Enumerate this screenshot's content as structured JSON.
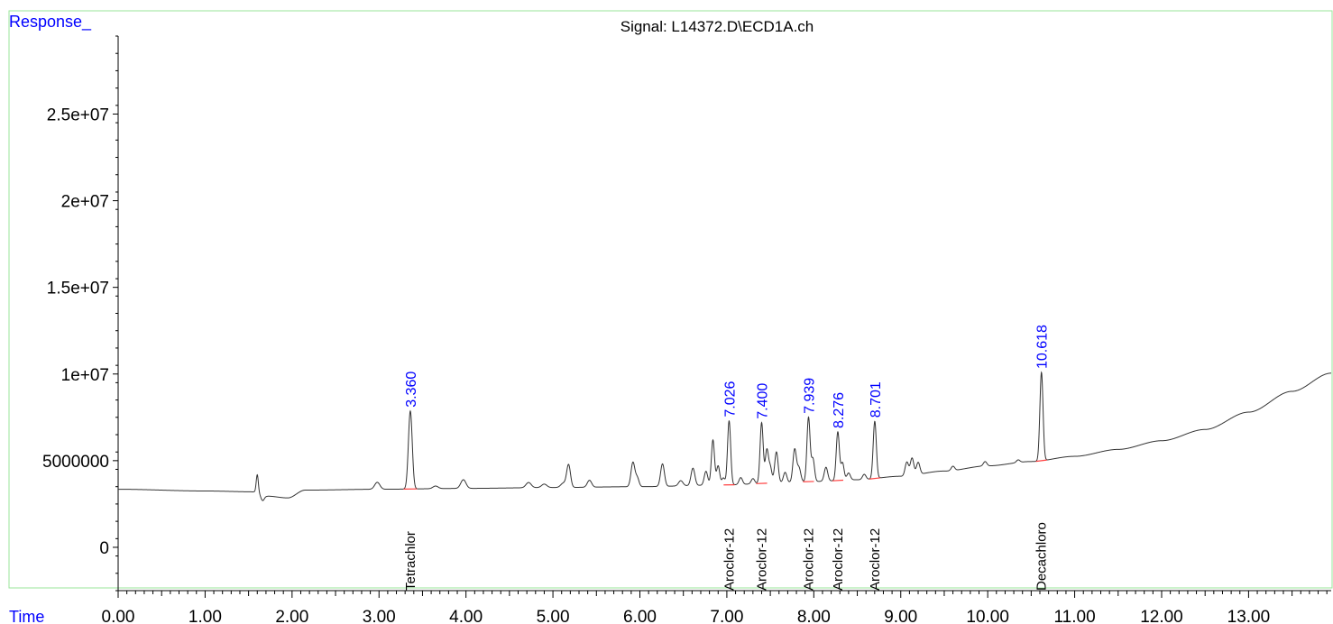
{
  "chart_data": {
    "type": "line",
    "title": "Signal: L14372.D\\ECD1A.ch",
    "ylabel": "Response_",
    "xlabel": "Time",
    "xlim": [
      0,
      13.95
    ],
    "ylim": [
      -2500000,
      29500000
    ],
    "x_ticks": [
      0,
      1,
      2,
      3,
      4,
      5,
      6,
      7,
      8,
      9,
      10,
      11,
      12,
      13
    ],
    "x_tick_labels": [
      "0.00",
      "1.00",
      "2.00",
      "3.00",
      "4.00",
      "5.00",
      "6.00",
      "7.00",
      "8.00",
      "9.00",
      "10.00",
      "11.00",
      "12.00",
      "13.00"
    ],
    "y_ticks": [
      0,
      5000000,
      10000000,
      15000000,
      20000000,
      25000000
    ],
    "y_tick_labels": [
      "0",
      "5000000",
      "1e+07",
      "1.5e+07",
      "2e+07",
      "2.5e+07"
    ],
    "baseline_points": [
      [
        0.0,
        3350000
      ],
      [
        1.0,
        3250000
      ],
      [
        1.58,
        3200000
      ],
      [
        1.72,
        2950000
      ],
      [
        1.95,
        2850000
      ],
      [
        2.15,
        3300000
      ],
      [
        3.0,
        3350000
      ],
      [
        4.0,
        3400000
      ],
      [
        5.0,
        3450000
      ],
      [
        6.0,
        3500000
      ],
      [
        7.0,
        3600000
      ],
      [
        7.5,
        3700000
      ],
      [
        8.0,
        3800000
      ],
      [
        8.5,
        3900000
      ],
      [
        9.0,
        4100000
      ],
      [
        9.5,
        4400000
      ],
      [
        10.0,
        4700000
      ],
      [
        10.5,
        4950000
      ],
      [
        11.0,
        5250000
      ],
      [
        11.5,
        5650000
      ],
      [
        12.0,
        6150000
      ],
      [
        12.5,
        6800000
      ],
      [
        13.0,
        7800000
      ],
      [
        13.5,
        9000000
      ],
      [
        13.95,
        10050000
      ]
    ],
    "minor_peaks": [
      {
        "rt": 1.6,
        "height": 1000000,
        "width": 0.012
      },
      {
        "rt": 2.98,
        "height": 400000,
        "width": 0.03
      },
      {
        "rt": 3.65,
        "height": 150000,
        "width": 0.03
      },
      {
        "rt": 3.97,
        "height": 500000,
        "width": 0.03
      },
      {
        "rt": 4.72,
        "height": 300000,
        "width": 0.03
      },
      {
        "rt": 4.9,
        "height": 200000,
        "width": 0.03
      },
      {
        "rt": 5.12,
        "height": 250000,
        "width": 0.03
      },
      {
        "rt": 5.18,
        "height": 1300000,
        "width": 0.022
      },
      {
        "rt": 5.42,
        "height": 400000,
        "width": 0.025
      },
      {
        "rt": 5.92,
        "height": 1400000,
        "width": 0.022
      },
      {
        "rt": 5.97,
        "height": 500000,
        "width": 0.02
      },
      {
        "rt": 6.26,
        "height": 1300000,
        "width": 0.022
      },
      {
        "rt": 6.47,
        "height": 300000,
        "width": 0.025
      },
      {
        "rt": 6.61,
        "height": 1000000,
        "width": 0.022
      },
      {
        "rt": 6.76,
        "height": 800000,
        "width": 0.02
      },
      {
        "rt": 6.84,
        "height": 2600000,
        "width": 0.018
      },
      {
        "rt": 6.9,
        "height": 1100000,
        "width": 0.018
      },
      {
        "rt": 6.96,
        "height": 400000,
        "width": 0.018
      },
      {
        "rt": 7.16,
        "height": 400000,
        "width": 0.02
      },
      {
        "rt": 7.3,
        "height": 300000,
        "width": 0.02
      },
      {
        "rt": 7.46,
        "height": 1900000,
        "width": 0.018
      },
      {
        "rt": 7.5,
        "height": 900000,
        "width": 0.018
      },
      {
        "rt": 7.57,
        "height": 1800000,
        "width": 0.02
      },
      {
        "rt": 7.67,
        "height": 600000,
        "width": 0.02
      },
      {
        "rt": 7.78,
        "height": 1900000,
        "width": 0.02
      },
      {
        "rt": 7.83,
        "height": 800000,
        "width": 0.02
      },
      {
        "rt": 7.99,
        "height": 1300000,
        "width": 0.018
      },
      {
        "rt": 8.14,
        "height": 800000,
        "width": 0.02
      },
      {
        "rt": 8.33,
        "height": 1000000,
        "width": 0.018
      },
      {
        "rt": 8.4,
        "height": 400000,
        "width": 0.02
      },
      {
        "rt": 8.58,
        "height": 300000,
        "width": 0.02
      },
      {
        "rt": 9.07,
        "height": 800000,
        "width": 0.02
      },
      {
        "rt": 9.13,
        "height": 1000000,
        "width": 0.02
      },
      {
        "rt": 9.2,
        "height": 700000,
        "width": 0.02
      },
      {
        "rt": 9.6,
        "height": 250000,
        "width": 0.02
      },
      {
        "rt": 9.97,
        "height": 250000,
        "width": 0.02
      },
      {
        "rt": 10.35,
        "height": 150000,
        "width": 0.02
      }
    ],
    "labeled_peaks": [
      {
        "rt": 3.36,
        "rt_label": "3.360",
        "height": 4500000,
        "width": 0.022,
        "compound": "Tetrachlor"
      },
      {
        "rt": 7.026,
        "rt_label": "7.026",
        "height": 3700000,
        "width": 0.018,
        "compound": "Aroclor-12"
      },
      {
        "rt": 7.4,
        "rt_label": "7.400",
        "height": 3500000,
        "width": 0.018,
        "compound": "Aroclor-12"
      },
      {
        "rt": 7.939,
        "rt_label": "7.939",
        "height": 3700000,
        "width": 0.018,
        "compound": "Aroclor-12"
      },
      {
        "rt": 8.276,
        "rt_label": "8.276",
        "height": 2800000,
        "width": 0.018,
        "compound": "Aroclor-12"
      },
      {
        "rt": 8.701,
        "rt_label": "8.701",
        "height": 3300000,
        "width": 0.018,
        "compound": "Aroclor-12"
      },
      {
        "rt": 10.618,
        "rt_label": "10.618",
        "height": 5100000,
        "width": 0.018,
        "compound": "Decachloro"
      }
    ],
    "colors": {
      "trace": "#333333",
      "axis": "#000000",
      "rt_label": "#0000ff",
      "ylabel": "#0000ff",
      "xlabel": "#0000ff",
      "integration_baseline": "#ff4040",
      "frame": "#66dd66"
    }
  }
}
